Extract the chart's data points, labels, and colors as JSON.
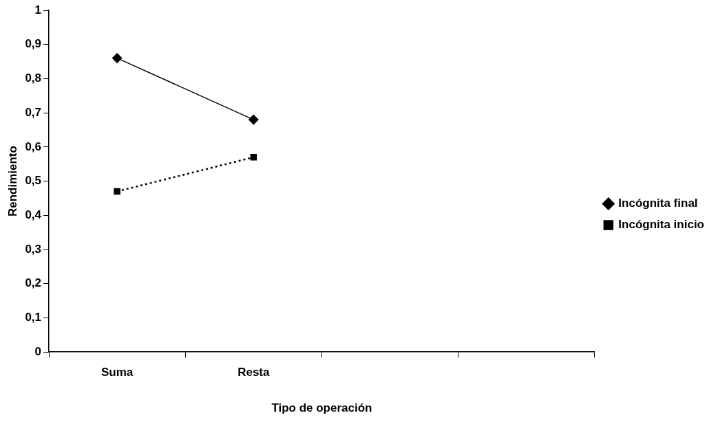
{
  "chart_data": {
    "type": "line",
    "xlabel": "Tipo de operación",
    "ylabel": "Rendimiento",
    "categories": [
      "Suma",
      "Resta",
      null,
      null
    ],
    "series": [
      {
        "name": "Incógnita final",
        "color": "#000000",
        "values": [
          0.86,
          0.68,
          null,
          null
        ],
        "marker": "diamond",
        "line_style": "solid"
      },
      {
        "name": "Incógnita inicio",
        "color": "#000000",
        "values": [
          0.47,
          0.57,
          null,
          null
        ],
        "marker": "square",
        "line_style": "dotted"
      }
    ],
    "ylim": [
      0,
      1
    ],
    "yticks": [
      0,
      {
        "value": 0.1,
        "label": "0,1"
      },
      {
        "value": 0.2,
        "label": "0,2"
      },
      {
        "value": 0.3,
        "label": "0,3"
      },
      {
        "value": 0.4,
        "label": "0,4"
      },
      {
        "value": 0.5,
        "label": "0,5"
      },
      {
        "value": 0.6,
        "label": "0,6"
      },
      {
        "value": 0.7,
        "label": "0,7"
      },
      {
        "value": 0.8,
        "label": "0,8"
      },
      {
        "value": 0.9,
        "label": "0,9"
      },
      1
    ],
    "grid": false,
    "legend": "right"
  }
}
